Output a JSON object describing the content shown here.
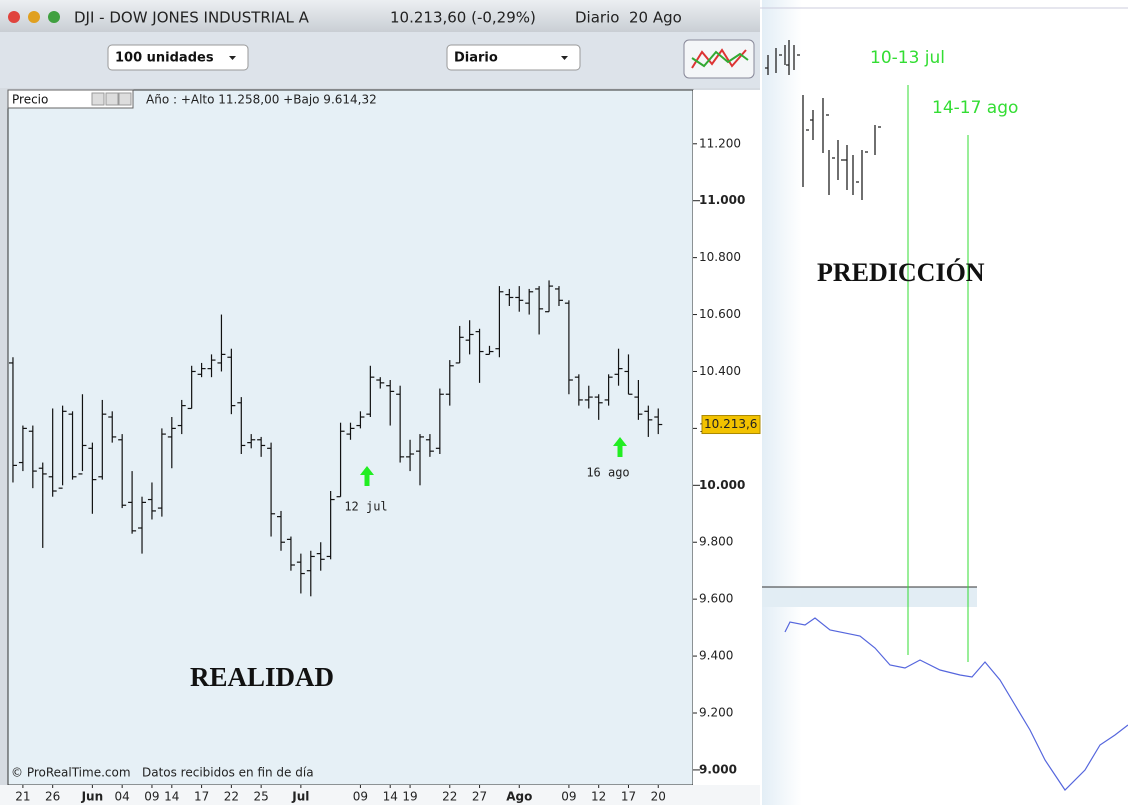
{
  "window": {
    "title": "DJI - DOW JONES INDUSTRIAL A",
    "price": "10.213,60 (-0,29%)",
    "period": "Diario  20 Ago"
  },
  "toolbar": {
    "units": "100 unidades",
    "timeframe": "Diario"
  },
  "panel": {
    "name": "Precio",
    "info": "Año : +Alto 11.258,00 +Bajo 9.614,32",
    "footer": "© ProRealTime.com   Datos recibidos en fin de día",
    "caption": "REALIDAD",
    "annotations": [
      "12 jul",
      "16 ago"
    ]
  },
  "prediction": {
    "caption": "PREDICCIÓN",
    "markers": [
      "10-13 jul",
      "14-17 ago"
    ]
  },
  "chart_data": {
    "type": "ohlc",
    "xlim": [
      -0.5,
      68.5
    ],
    "xticks": [
      {
        "value": 1,
        "label": "21"
      },
      {
        "value": 4,
        "label": "26"
      },
      {
        "value": 8,
        "label": "Jun"
      },
      {
        "value": 11,
        "label": "04"
      },
      {
        "value": 14,
        "label": "09"
      },
      {
        "value": 16,
        "label": "14"
      },
      {
        "value": 19,
        "label": "17"
      },
      {
        "value": 22,
        "label": "22"
      },
      {
        "value": 25,
        "label": "25"
      },
      {
        "value": 29,
        "label": "Jul"
      },
      {
        "value": 35,
        "label": "09"
      },
      {
        "value": 38,
        "label": "14"
      },
      {
        "value": 40,
        "label": "19"
      },
      {
        "value": 44,
        "label": "22"
      },
      {
        "value": 47,
        "label": "27"
      },
      {
        "value": 51,
        "label": "Ago"
      },
      {
        "value": 56,
        "label": "09"
      },
      {
        "value": 59,
        "label": "12"
      },
      {
        "value": 62,
        "label": "17"
      },
      {
        "value": 65,
        "label": "20"
      }
    ],
    "ylim": [
      8947,
      11389
    ],
    "yticks": [
      {
        "value": 9000,
        "label": "9.000"
      },
      {
        "value": 9200,
        "label": "9.200"
      },
      {
        "value": 9400,
        "label": "9.400"
      },
      {
        "value": 9600,
        "label": "9.600"
      },
      {
        "value": 9800,
        "label": "9.800"
      },
      {
        "value": 10000,
        "label": "10.000"
      },
      {
        "value": 10200,
        "label": "10.200"
      },
      {
        "value": 10400,
        "label": "10.400"
      },
      {
        "value": 10600,
        "label": "10.600"
      },
      {
        "value": 10800,
        "label": "10.800"
      },
      {
        "value": 11000,
        "label": "11.000"
      },
      {
        "value": 11200,
        "label": "11.200"
      }
    ],
    "last": {
      "value": 10213.6,
      "label": "10.213,6"
    },
    "color": "#111111",
    "open": [
      10430,
      10080,
      10190,
      10060,
      10030,
      9990,
      10250,
      10040,
      10130,
      10030,
      10240,
      10160,
      9940,
      9850,
      9950,
      9920,
      10170,
      10210,
      10270,
      10390,
      10410,
      10430,
      10450,
      10290,
      10150,
      10160,
      10130,
      9890,
      9810,
      9730,
      9700,
      9760,
      9750,
      9960,
      10180,
      10210,
      10250,
      10370,
      10350,
      10320,
      10100,
      10120,
      10160,
      10130,
      10320,
      10430,
      10510,
      10540,
      10460,
      10480,
      10670,
      10660,
      10640,
      10690,
      10610,
      10690,
      10640,
      10380,
      10300,
      10310,
      10300,
      10390,
      10400,
      10310,
      10260,
      10240
    ],
    "high": [
      10450,
      10210,
      10210,
      10080,
      10270,
      10280,
      10260,
      10320,
      10150,
      10300,
      10260,
      10180,
      10050,
      9960,
      10010,
      10200,
      10240,
      10300,
      10420,
      10430,
      10460,
      10600,
      10480,
      10310,
      10180,
      10170,
      10150,
      9910,
      9820,
      9760,
      9770,
      9800,
      9980,
      10220,
      10220,
      10260,
      10420,
      10380,
      10370,
      10350,
      10160,
      10180,
      10180,
      10340,
      10440,
      10560,
      10580,
      10550,
      10490,
      10700,
      10690,
      10700,
      10690,
      10700,
      10720,
      10700,
      10650,
      10390,
      10350,
      10320,
      10390,
      10480,
      10460,
      10370,
      10280,
      10270
    ],
    "low": [
      10010,
      10050,
      9990,
      9780,
      9960,
      10000,
      10020,
      10050,
      9900,
      10020,
      10150,
      9920,
      9830,
      9760,
      9880,
      9890,
      10060,
      10180,
      10270,
      10380,
      10380,
      10400,
      10250,
      10110,
      10130,
      10100,
      9820,
      9770,
      9700,
      9620,
      9610,
      9700,
      9740,
      9960,
      10160,
      10200,
      10240,
      10340,
      10210,
      10080,
      10050,
      10000,
      10100,
      10110,
      10280,
      10430,
      10460,
      10360,
      10460,
      10450,
      10630,
      10610,
      10600,
      10530,
      10610,
      10630,
      10320,
      10280,
      10270,
      10230,
      10280,
      10350,
      10320,
      10230,
      10170,
      10180
    ],
    "close": [
      10070,
      10200,
      10050,
      10040,
      9980,
      10260,
      10030,
      10140,
      10020,
      10250,
      10170,
      9930,
      9840,
      9940,
      9910,
      10180,
      10200,
      10280,
      10400,
      10410,
      10440,
      10460,
      10280,
      10140,
      10160,
      10140,
      9900,
      9800,
      9720,
      9690,
      9750,
      9740,
      9950,
      10190,
      10200,
      10240,
      10380,
      10360,
      10330,
      10100,
      10110,
      10170,
      10120,
      10320,
      10420,
      10520,
      10530,
      10470,
      10470,
      10680,
      10660,
      10650,
      10680,
      10620,
      10700,
      10650,
      10370,
      10300,
      10310,
      10290,
      10380,
      10410,
      10320,
      10250,
      10230,
      10213.6
    ]
  }
}
